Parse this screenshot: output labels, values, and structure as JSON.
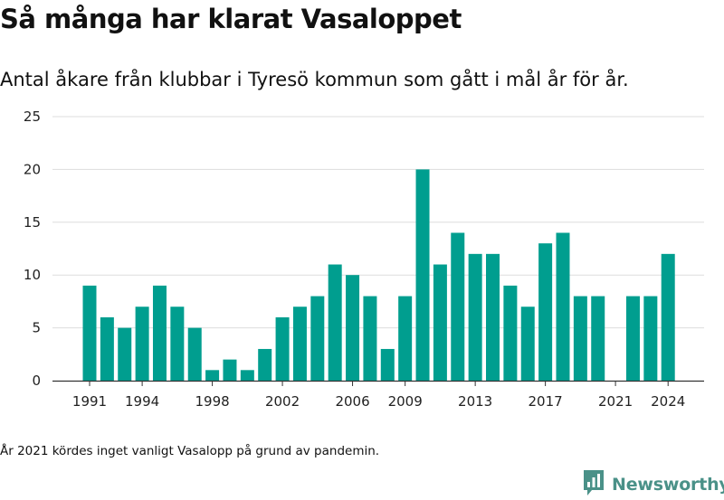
{
  "header": {
    "title": "Så många har klarat Vasaloppet",
    "subtitle": "Antal åkare från klubbar i Tyresö kommun som gått i mål år för år."
  },
  "footnote": "År 2021 kördes inget vanligt Vasalopp på grund av pandemin.",
  "logo": {
    "text": "Newsworthy",
    "icon": "newsworthy-logo-icon"
  },
  "colors": {
    "bar": "#009e8f",
    "grid": "#dddddd",
    "axis": "#333333",
    "logo": "#4a9188"
  },
  "chart_data": {
    "type": "bar",
    "title": "Så många har klarat Vasaloppet",
    "subtitle": "Antal åkare från klubbar i Tyresö kommun som gått i mål år för år.",
    "x": [
      1991,
      1992,
      1993,
      1994,
      1995,
      1996,
      1997,
      1998,
      1999,
      2000,
      2001,
      2002,
      2003,
      2004,
      2005,
      2006,
      2007,
      2008,
      2009,
      2010,
      2011,
      2012,
      2013,
      2014,
      2015,
      2016,
      2017,
      2018,
      2019,
      2020,
      2021,
      2022,
      2023,
      2024
    ],
    "values": [
      9,
      6,
      5,
      7,
      9,
      7,
      5,
      1,
      2,
      1,
      3,
      6,
      7,
      8,
      11,
      10,
      8,
      3,
      8,
      20,
      11,
      14,
      12,
      12,
      9,
      7,
      13,
      14,
      8,
      8,
      0,
      8,
      8,
      12
    ],
    "x_tick_labels": [
      "1991",
      "1994",
      "1998",
      "2002",
      "2006",
      "2009",
      "2013",
      "2017",
      "2021",
      "2024"
    ],
    "y_ticks": [
      0,
      5,
      10,
      15,
      20,
      25
    ],
    "ylim": [
      0,
      25
    ],
    "xlabel": "",
    "ylabel": "",
    "grid": true,
    "legend": "none"
  }
}
